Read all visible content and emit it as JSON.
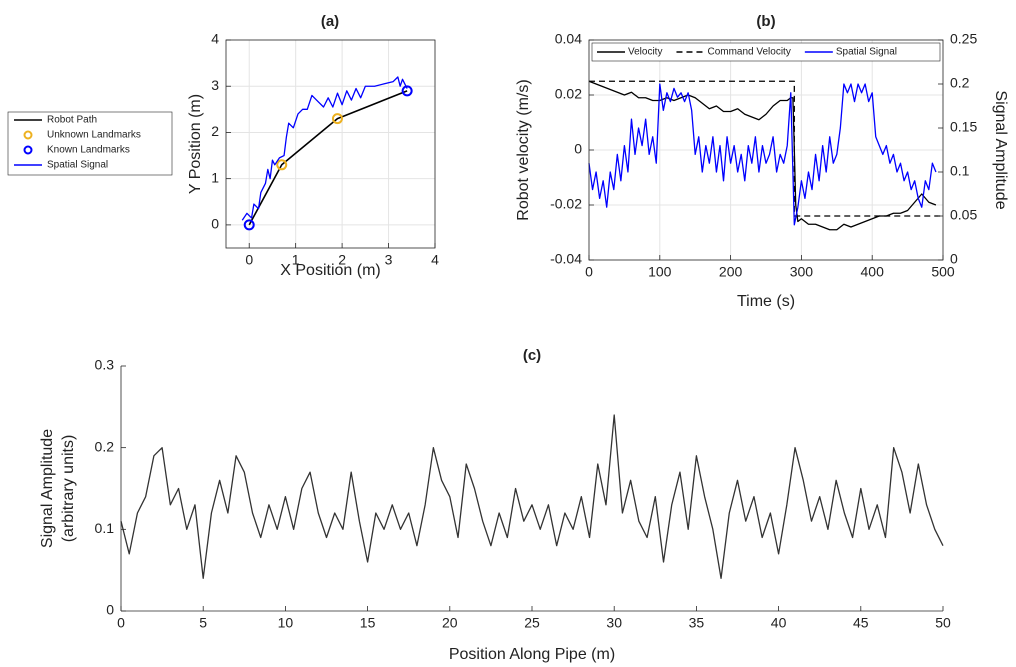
{
  "chart_data": [
    {
      "type": "line",
      "title": "(a)",
      "xlabel": "X Position (m)",
      "ylabel": "Y Position (m)",
      "xlim": [
        -0.5,
        4
      ],
      "xticks": [
        0,
        1,
        2,
        3,
        4
      ],
      "ylim": [
        -0.5,
        4
      ],
      "yticks": [
        0,
        1,
        2,
        3,
        4
      ],
      "grid": true,
      "box": true,
      "legend": "outside-left",
      "series": [
        {
          "name": "Robot Path",
          "color": "#000000",
          "mode": "lines",
          "x": [
            0,
            0.7,
            1.9,
            3.4
          ],
          "values": [
            0,
            1.3,
            2.3,
            2.9
          ]
        },
        {
          "name": "Unknown Landmarks",
          "color": "#EDB120",
          "mode": "markers",
          "x": [
            0.7,
            1.9
          ],
          "values": [
            1.3,
            2.3
          ]
        },
        {
          "name": "Known Landmarks",
          "color": "#0000FF",
          "mode": "markers",
          "x": [
            0,
            3.4
          ],
          "values": [
            0,
            2.9
          ]
        },
        {
          "name": "Spatial Signal",
          "color": "#0000FF",
          "mode": "lines",
          "x": [
            -0.15,
            -0.05,
            0.05,
            0.1,
            0.2,
            0.25,
            0.35,
            0.4,
            0.45,
            0.5,
            0.55,
            0.65,
            0.75,
            0.8,
            0.85,
            0.95,
            1.05,
            1.15,
            1.25,
            1.35,
            1.5,
            1.6,
            1.7,
            1.8,
            1.9,
            2.0,
            2.1,
            2.2,
            2.3,
            2.4,
            2.5,
            2.7,
            2.9,
            3.1,
            3.2,
            3.25,
            3.3,
            3.4
          ],
          "values": [
            0.1,
            0.25,
            0.15,
            0.45,
            0.35,
            0.7,
            0.9,
            1.2,
            1.0,
            1.4,
            1.3,
            1.45,
            1.5,
            1.9,
            2.2,
            2.1,
            2.4,
            2.5,
            2.5,
            2.8,
            2.65,
            2.55,
            2.75,
            2.55,
            2.85,
            2.6,
            2.9,
            2.7,
            2.95,
            2.75,
            3.0,
            3.0,
            3.05,
            3.1,
            3.2,
            3.0,
            3.15,
            2.95
          ]
        }
      ]
    },
    {
      "type": "line",
      "title": "(b)",
      "xlabel": "Time (s)",
      "ylabel": "Robot velocity (m/s)",
      "y2label": "Signal Amplitude",
      "xlim": [
        0,
        500
      ],
      "xticks": [
        0,
        100,
        200,
        300,
        400,
        500
      ],
      "ylim": [
        -0.04,
        0.04
      ],
      "yticks": [
        -0.04,
        -0.02,
        0,
        0.02,
        0.04
      ],
      "y2lim": [
        0,
        0.25
      ],
      "y2ticks": [
        0,
        0.05,
        0.1,
        0.15,
        0.2,
        0.25
      ],
      "grid": true,
      "box": true,
      "legend": "top",
      "series": [
        {
          "name": "Velocity",
          "color": "#000000",
          "mode": "lines",
          "x": [
            0,
            10,
            20,
            30,
            40,
            50,
            60,
            70,
            80,
            90,
            100,
            110,
            120,
            130,
            140,
            150,
            160,
            170,
            180,
            190,
            200,
            210,
            220,
            230,
            240,
            250,
            260,
            270,
            280,
            285,
            288,
            290,
            292,
            295,
            300,
            310,
            320,
            330,
            340,
            350,
            360,
            370,
            380,
            390,
            400,
            410,
            420,
            430,
            440,
            450,
            460,
            470,
            480,
            490
          ],
          "values": [
            0.025,
            0.024,
            0.023,
            0.022,
            0.021,
            0.02,
            0.021,
            0.019,
            0.019,
            0.018,
            0.018,
            0.019,
            0.018,
            0.019,
            0.02,
            0.019,
            0.017,
            0.015,
            0.016,
            0.014,
            0.014,
            0.015,
            0.013,
            0.012,
            0.011,
            0.013,
            0.016,
            0.018,
            0.018,
            0.019,
            0.019,
            0.0,
            -0.02,
            -0.026,
            -0.025,
            -0.027,
            -0.027,
            -0.028,
            -0.029,
            -0.029,
            -0.027,
            -0.028,
            -0.027,
            -0.026,
            -0.025,
            -0.024,
            -0.024,
            -0.023,
            -0.023,
            -0.022,
            -0.019,
            -0.016,
            -0.019,
            -0.02
          ]
        },
        {
          "name": "Command Velocity",
          "color": "#000000",
          "mode": "lines",
          "linestyle": "dashed",
          "x": [
            0,
            290,
            290,
            500
          ],
          "values": [
            0.025,
            0.025,
            -0.024,
            -0.024
          ]
        },
        {
          "name": "Spatial Signal",
          "color": "#0000FF",
          "mode": "lines",
          "axis": "y2",
          "x": [
            0,
            5,
            10,
            15,
            20,
            25,
            30,
            35,
            40,
            45,
            50,
            55,
            60,
            65,
            70,
            75,
            80,
            85,
            90,
            95,
            100,
            105,
            110,
            115,
            120,
            125,
            130,
            135,
            140,
            145,
            150,
            155,
            160,
            165,
            170,
            175,
            180,
            185,
            190,
            195,
            200,
            205,
            210,
            215,
            220,
            225,
            230,
            235,
            240,
            245,
            250,
            255,
            260,
            265,
            270,
            275,
            280,
            285,
            290,
            295,
            300,
            305,
            310,
            315,
            320,
            325,
            330,
            335,
            340,
            345,
            350,
            355,
            360,
            365,
            370,
            375,
            380,
            385,
            390,
            395,
            400,
            405,
            410,
            415,
            420,
            425,
            430,
            435,
            440,
            445,
            450,
            455,
            460,
            465,
            470,
            475,
            480,
            485,
            490
          ],
          "values": [
            0.11,
            0.08,
            0.1,
            0.07,
            0.09,
            0.06,
            0.1,
            0.08,
            0.12,
            0.09,
            0.13,
            0.1,
            0.16,
            0.12,
            0.15,
            0.13,
            0.16,
            0.12,
            0.14,
            0.11,
            0.2,
            0.17,
            0.19,
            0.18,
            0.195,
            0.185,
            0.19,
            0.18,
            0.19,
            0.17,
            0.12,
            0.14,
            0.1,
            0.13,
            0.11,
            0.14,
            0.1,
            0.13,
            0.09,
            0.14,
            0.11,
            0.13,
            0.1,
            0.12,
            0.09,
            0.13,
            0.11,
            0.14,
            0.1,
            0.13,
            0.11,
            0.12,
            0.14,
            0.1,
            0.12,
            0.11,
            0.13,
            0.19,
            0.04,
            0.06,
            0.09,
            0.07,
            0.1,
            0.08,
            0.12,
            0.09,
            0.13,
            0.1,
            0.14,
            0.11,
            0.12,
            0.15,
            0.2,
            0.19,
            0.2,
            0.18,
            0.2,
            0.19,
            0.2,
            0.18,
            0.19,
            0.14,
            0.13,
            0.12,
            0.13,
            0.11,
            0.12,
            0.1,
            0.11,
            0.09,
            0.1,
            0.08,
            0.09,
            0.07,
            0.06,
            0.09,
            0.08,
            0.11,
            0.1
          ]
        }
      ]
    },
    {
      "type": "line",
      "title": "(c)",
      "xlabel": "Position Along Pipe (m)",
      "ylabel": [
        "Signal Amplitude",
        "(arbitrary units)"
      ],
      "xlim": [
        0,
        50
      ],
      "xticks": [
        0,
        5,
        10,
        15,
        20,
        25,
        30,
        35,
        40,
        45,
        50
      ],
      "ylim": [
        0,
        0.3
      ],
      "yticks": [
        0,
        0.1,
        0.2,
        0.3
      ],
      "grid": false,
      "box": false,
      "x": [
        0,
        0.5,
        1,
        1.5,
        2,
        2.5,
        3,
        3.5,
        4,
        4.5,
        5,
        5.5,
        6,
        6.5,
        7,
        7.5,
        8,
        8.5,
        9,
        9.5,
        10,
        10.5,
        11,
        11.5,
        12,
        12.5,
        13,
        13.5,
        14,
        14.5,
        15,
        15.5,
        16,
        16.5,
        17,
        17.5,
        18,
        18.5,
        19,
        19.5,
        20,
        20.5,
        21,
        21.5,
        22,
        22.5,
        23,
        23.5,
        24,
        24.5,
        25,
        25.5,
        26,
        26.5,
        27,
        27.5,
        28,
        28.5,
        29,
        29.5,
        30,
        30.5,
        31,
        31.5,
        32,
        32.5,
        33,
        33.5,
        34,
        34.5,
        35,
        35.5,
        36,
        36.5,
        37,
        37.5,
        38,
        38.5,
        39,
        39.5,
        40,
        40.5,
        41,
        41.5,
        42,
        42.5,
        43,
        43.5,
        44,
        44.5,
        45,
        45.5,
        46,
        46.5,
        47,
        47.5,
        48,
        48.5,
        49,
        49.5,
        50
      ],
      "series": [
        {
          "color": "#333333",
          "mode": "lines",
          "values": [
            0.11,
            0.07,
            0.12,
            0.14,
            0.19,
            0.2,
            0.13,
            0.15,
            0.1,
            0.13,
            0.04,
            0.12,
            0.16,
            0.12,
            0.19,
            0.17,
            0.12,
            0.09,
            0.13,
            0.1,
            0.14,
            0.1,
            0.15,
            0.17,
            0.12,
            0.09,
            0.12,
            0.1,
            0.17,
            0.11,
            0.06,
            0.12,
            0.1,
            0.13,
            0.1,
            0.12,
            0.08,
            0.13,
            0.2,
            0.16,
            0.14,
            0.09,
            0.18,
            0.15,
            0.11,
            0.08,
            0.12,
            0.09,
            0.15,
            0.11,
            0.13,
            0.1,
            0.13,
            0.08,
            0.12,
            0.1,
            0.14,
            0.09,
            0.18,
            0.13,
            0.24,
            0.12,
            0.16,
            0.11,
            0.09,
            0.14,
            0.06,
            0.13,
            0.17,
            0.1,
            0.19,
            0.14,
            0.1,
            0.04,
            0.12,
            0.16,
            0.11,
            0.14,
            0.09,
            0.12,
            0.07,
            0.13,
            0.2,
            0.16,
            0.11,
            0.14,
            0.1,
            0.16,
            0.12,
            0.09,
            0.15,
            0.1,
            0.13,
            0.09,
            0.2,
            0.17,
            0.12,
            0.18,
            0.13,
            0.1,
            0.08
          ]
        }
      ]
    }
  ]
}
